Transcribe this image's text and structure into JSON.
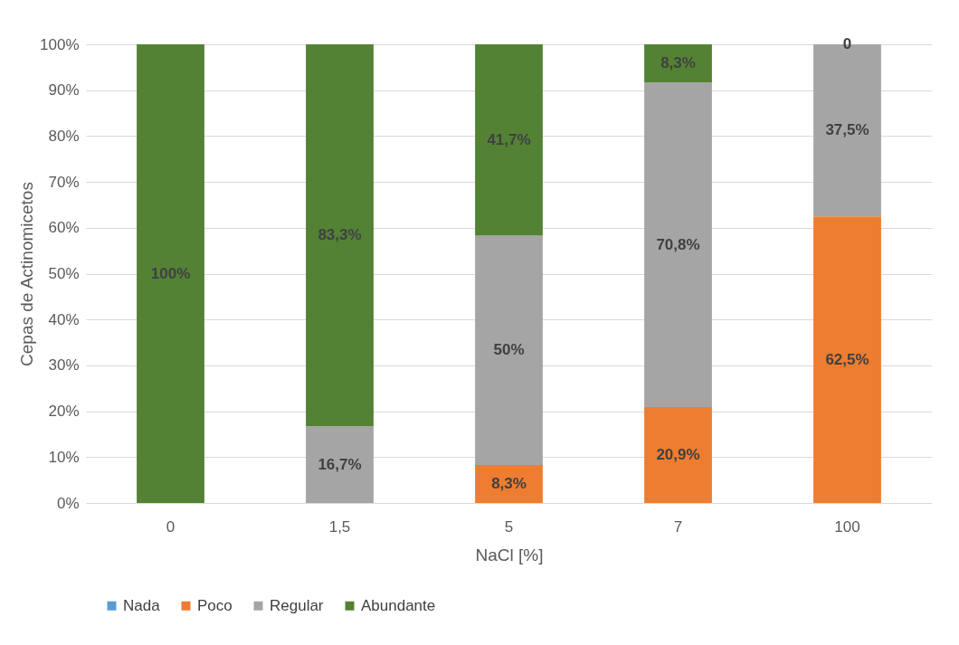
{
  "chart_data": {
    "type": "bar",
    "stacked": true,
    "xlabel": "NaCl [%]",
    "ylabel": "Cepas de Actinomicetos",
    "categories": [
      "0",
      "1,5",
      "5",
      "7",
      "100"
    ],
    "ylim": [
      0,
      100
    ],
    "yticks": [
      {
        "value": 0,
        "label": "0%"
      },
      {
        "value": 10,
        "label": "10%"
      },
      {
        "value": 20,
        "label": "20%"
      },
      {
        "value": 30,
        "label": "30%"
      },
      {
        "value": 40,
        "label": "40%"
      },
      {
        "value": 50,
        "label": "50%"
      },
      {
        "value": 60,
        "label": "60%"
      },
      {
        "value": 70,
        "label": "70%"
      },
      {
        "value": 80,
        "label": "80%"
      },
      {
        "value": 90,
        "label": "90%"
      },
      {
        "value": 100,
        "label": "100%"
      }
    ],
    "grid": "y",
    "legend": "bottom",
    "series": [
      {
        "name": "Nada",
        "color": "#5b9bd5",
        "values": [
          0,
          0,
          0,
          0,
          0
        ]
      },
      {
        "name": "Poco",
        "color": "#ed7d31",
        "values": [
          0,
          0,
          8.3,
          20.9,
          62.5
        ],
        "value_labels": [
          null,
          null,
          "8,3%",
          "20,9%",
          "62,5%"
        ]
      },
      {
        "name": "Regular",
        "color": "#a5a5a5",
        "values": [
          0,
          16.7,
          50,
          70.8,
          37.5
        ],
        "value_labels": [
          null,
          "16,7%",
          "50%",
          "70,8%",
          "37,5%"
        ]
      },
      {
        "name": "Abundante",
        "color": "#548235",
        "values": [
          100,
          83.3,
          41.7,
          8.3,
          0
        ],
        "value_labels": [
          "100%",
          "83,3%",
          "41,7%",
          "8,3%",
          "0"
        ]
      }
    ]
  }
}
